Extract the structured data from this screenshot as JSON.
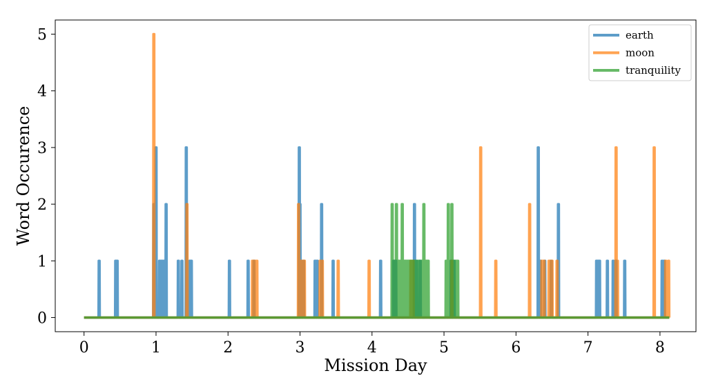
{
  "chart_data": {
    "type": "line",
    "xlabel": "Mission Day",
    "ylabel": "Word Occurence",
    "xlim": [
      -0.4,
      8.5
    ],
    "ylim": [
      -0.25,
      5.25
    ],
    "xticks": [
      0,
      1,
      2,
      3,
      4,
      5,
      6,
      7,
      8
    ],
    "yticks": [
      0,
      1,
      2,
      3,
      4,
      5
    ],
    "x_end": 8.13,
    "grid": false,
    "legend_position": "top-right",
    "series": [
      {
        "name": "earth",
        "color": "#1f77b4",
        "spikes": [
          [
            0.21,
            1
          ],
          [
            0.44,
            1
          ],
          [
            0.46,
            1
          ],
          [
            0.97,
            2
          ],
          [
            1.0,
            3
          ],
          [
            1.05,
            1
          ],
          [
            1.08,
            1
          ],
          [
            1.11,
            1
          ],
          [
            1.14,
            2
          ],
          [
            1.31,
            1
          ],
          [
            1.36,
            1
          ],
          [
            1.42,
            3
          ],
          [
            1.47,
            1
          ],
          [
            1.49,
            1
          ],
          [
            2.02,
            1
          ],
          [
            2.28,
            1
          ],
          [
            2.36,
            1
          ],
          [
            2.99,
            3
          ],
          [
            3.0,
            2
          ],
          [
            3.02,
            1
          ],
          [
            3.05,
            1
          ],
          [
            3.21,
            1
          ],
          [
            3.24,
            1
          ],
          [
            3.3,
            2
          ],
          [
            3.46,
            1
          ],
          [
            4.12,
            1
          ],
          [
            4.3,
            1
          ],
          [
            4.33,
            1
          ],
          [
            4.59,
            2
          ],
          [
            4.62,
            1
          ],
          [
            4.67,
            1
          ],
          [
            5.1,
            1
          ],
          [
            5.14,
            1
          ],
          [
            6.31,
            3
          ],
          [
            6.34,
            1
          ],
          [
            6.4,
            1
          ],
          [
            6.49,
            1
          ],
          [
            6.59,
            2
          ],
          [
            7.12,
            1
          ],
          [
            7.14,
            1
          ],
          [
            7.16,
            1
          ],
          [
            7.27,
            1
          ],
          [
            7.35,
            1
          ],
          [
            7.39,
            1
          ],
          [
            7.51,
            1
          ],
          [
            8.03,
            1
          ],
          [
            8.06,
            1
          ]
        ]
      },
      {
        "name": "moon",
        "color": "#ff7f0e",
        "spikes": [
          [
            0.97,
            5
          ],
          [
            1.43,
            2
          ],
          [
            2.34,
            1
          ],
          [
            2.37,
            1
          ],
          [
            2.4,
            1
          ],
          [
            2.98,
            2
          ],
          [
            3.01,
            1
          ],
          [
            3.04,
            1
          ],
          [
            3.06,
            1
          ],
          [
            3.28,
            1
          ],
          [
            3.31,
            1
          ],
          [
            3.53,
            1
          ],
          [
            3.96,
            1
          ],
          [
            4.54,
            1
          ],
          [
            4.57,
            1
          ],
          [
            5.11,
            1
          ],
          [
            5.51,
            3
          ],
          [
            5.72,
            1
          ],
          [
            6.19,
            2
          ],
          [
            6.36,
            1
          ],
          [
            6.39,
            1
          ],
          [
            6.46,
            1
          ],
          [
            6.48,
            1
          ],
          [
            6.5,
            1
          ],
          [
            6.57,
            1
          ],
          [
            7.39,
            3
          ],
          [
            7.41,
            1
          ],
          [
            7.92,
            3
          ],
          [
            8.08,
            1
          ],
          [
            8.12,
            1
          ]
        ]
      },
      {
        "name": "tranquility",
        "color": "#2ca02c",
        "spikes": [
          [
            4.28,
            2
          ],
          [
            4.29,
            1
          ],
          [
            4.31,
            1
          ],
          [
            4.34,
            2
          ],
          [
            4.35,
            1
          ],
          [
            4.37,
            1
          ],
          [
            4.38,
            1
          ],
          [
            4.4,
            1
          ],
          [
            4.42,
            2
          ],
          [
            4.43,
            1
          ],
          [
            4.45,
            1
          ],
          [
            4.47,
            1
          ],
          [
            4.49,
            1
          ],
          [
            4.51,
            1
          ],
          [
            4.53,
            1
          ],
          [
            4.55,
            1
          ],
          [
            4.58,
            1
          ],
          [
            4.61,
            1
          ],
          [
            4.64,
            1
          ],
          [
            4.66,
            1
          ],
          [
            4.69,
            1
          ],
          [
            4.71,
            1
          ],
          [
            4.72,
            2
          ],
          [
            4.74,
            1
          ],
          [
            4.76,
            1
          ],
          [
            4.78,
            1
          ],
          [
            5.03,
            1
          ],
          [
            5.06,
            2
          ],
          [
            5.08,
            1
          ],
          [
            5.1,
            1
          ],
          [
            5.11,
            2
          ],
          [
            5.13,
            1
          ],
          [
            5.15,
            1
          ],
          [
            5.17,
            1
          ],
          [
            5.19,
            1
          ]
        ]
      }
    ]
  }
}
